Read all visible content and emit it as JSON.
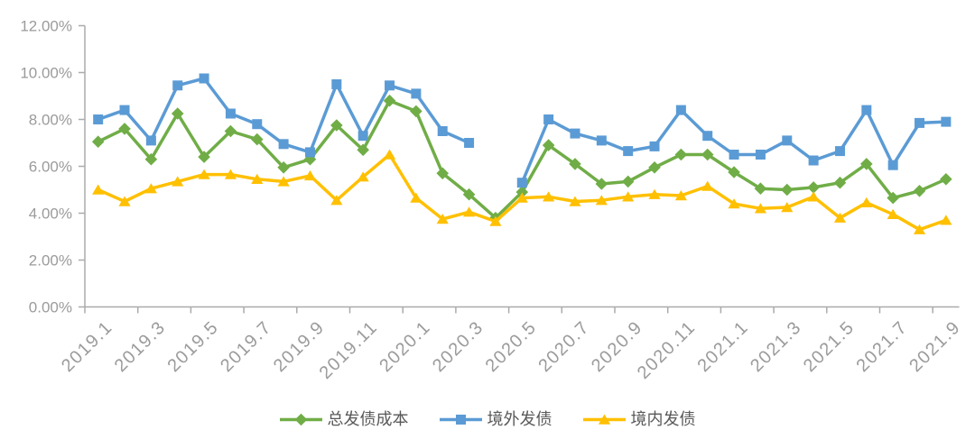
{
  "chart_data": {
    "type": "line",
    "title": "",
    "categories": [
      "2019.1",
      "2019.2",
      "2019.3",
      "2019.4",
      "2019.5",
      "2019.6",
      "2019.7",
      "2019.8",
      "2019.9",
      "2019.10",
      "2019.11",
      "2019.12",
      "2020.1",
      "2020.2",
      "2020.3",
      "2020.4",
      "2020.5",
      "2020.6",
      "2020.7",
      "2020.8",
      "2020.9",
      "2020.10",
      "2020.11",
      "2020.12",
      "2021.1",
      "2021.2",
      "2021.3",
      "2021.4",
      "2021.5",
      "2021.6",
      "2021.7",
      "2021.8",
      "2021.9"
    ],
    "series": [
      {
        "name": "总发债成本",
        "color": "#70AD47",
        "marker": "diamond",
        "values": [
          7.05,
          7.6,
          6.3,
          8.25,
          6.4,
          7.5,
          7.15,
          5.95,
          6.3,
          7.75,
          6.7,
          8.8,
          8.35,
          5.7,
          4.8,
          3.8,
          4.9,
          6.9,
          6.1,
          5.25,
          5.35,
          5.95,
          6.5,
          6.5,
          5.75,
          5.05,
          5.0,
          5.1,
          5.3,
          6.1,
          4.65,
          4.95,
          5.45
        ]
      },
      {
        "name": "境外发债",
        "color": "#5B9BD5",
        "marker": "square",
        "values": [
          8.0,
          8.4,
          7.1,
          9.45,
          9.75,
          8.25,
          7.8,
          6.95,
          6.6,
          9.5,
          7.3,
          9.45,
          9.1,
          7.5,
          7.0,
          null,
          5.3,
          8.0,
          7.4,
          7.1,
          6.65,
          6.85,
          8.4,
          7.3,
          6.5,
          6.5,
          7.1,
          6.25,
          6.65,
          8.4,
          6.05,
          7.85,
          7.9
        ]
      },
      {
        "name": "境内发债",
        "color": "#FFC000",
        "marker": "triangle",
        "values": [
          5.0,
          4.5,
          5.05,
          5.35,
          5.65,
          5.65,
          5.45,
          5.35,
          5.6,
          4.55,
          5.55,
          6.5,
          4.65,
          3.75,
          4.05,
          3.65,
          4.65,
          4.7,
          4.5,
          4.55,
          4.7,
          4.8,
          4.75,
          5.15,
          4.4,
          4.2,
          4.25,
          4.7,
          3.8,
          4.45,
          3.95,
          3.3,
          3.7
        ]
      }
    ],
    "y_axis": {
      "min": 0,
      "max": 12,
      "step": 2,
      "tick_labels": [
        "0.00%",
        "2.00%",
        "4.00%",
        "6.00%",
        "8.00%",
        "10.00%",
        "12.00%"
      ]
    },
    "x_axis": {
      "label_every": 2
    },
    "legend_position": "bottom",
    "grid": false
  },
  "styles": {
    "axis_color": "#ABABAB",
    "axis_text_color": "#9B9B9B",
    "legend_text_color": "#595959",
    "background": "#FFFFFF"
  }
}
